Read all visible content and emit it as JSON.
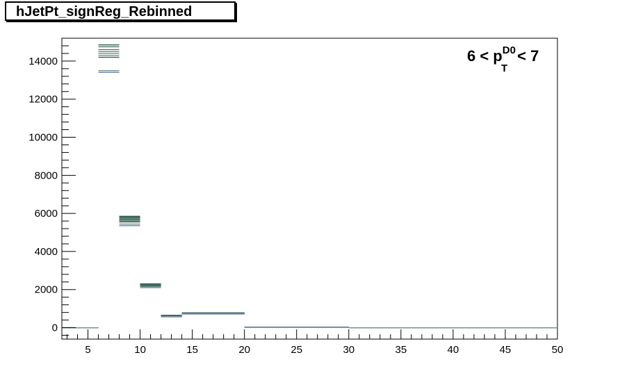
{
  "title": "hJetPt_signReg_Rebinned",
  "annotation": {
    "prefix": "6 < p",
    "superscript": "D0",
    "subscript": "T",
    "suffix": "< 7"
  },
  "chart_data": {
    "type": "histogram",
    "title": "hJetPt_signReg_Rebinned",
    "xlabel": "",
    "ylabel": "",
    "xlim": [
      2.5,
      50
    ],
    "ylim": [
      -600,
      15200
    ],
    "x_ticks": [
      5,
      10,
      15,
      20,
      25,
      30,
      35,
      40,
      45,
      50
    ],
    "y_ticks": [
      0,
      2000,
      4000,
      6000,
      8000,
      10000,
      12000,
      14000
    ],
    "bin_edges": [
      2.5,
      6,
      8,
      10,
      12,
      14,
      20,
      30,
      50
    ],
    "series": [
      {
        "color": "#1f4a3f",
        "values": [
          0,
          14850,
          5850,
          2300,
          650,
          780,
          30,
          0
        ]
      },
      {
        "color": "#2e5a4e",
        "values": [
          0,
          14750,
          5800,
          2280,
          640,
          770,
          28,
          0
        ]
      },
      {
        "color": "#3a6a5c",
        "values": [
          0,
          14600,
          5750,
          2260,
          630,
          760,
          26,
          0
        ]
      },
      {
        "color": "#456f63",
        "values": [
          0,
          14500,
          5700,
          2240,
          620,
          755,
          25,
          0
        ]
      },
      {
        "color": "#4f7769",
        "values": [
          0,
          14400,
          5650,
          2220,
          610,
          750,
          24,
          0
        ]
      },
      {
        "color": "#5a7f72",
        "values": [
          0,
          14300,
          5600,
          2200,
          600,
          745,
          22,
          0
        ]
      },
      {
        "color": "#33504a",
        "values": [
          0,
          14200,
          5550,
          2180,
          590,
          740,
          20,
          0
        ]
      },
      {
        "color": "#6f8f88",
        "values": [
          0,
          13500,
          5450,
          2150,
          580,
          730,
          18,
          0
        ]
      },
      {
        "color": "#8aa3a0",
        "values": [
          0,
          13420,
          5380,
          2120,
          570,
          720,
          16,
          0
        ]
      },
      {
        "color": "#7b8fbf",
        "values": [
          0,
          13400,
          5350,
          2100,
          560,
          710,
          15,
          0
        ]
      }
    ]
  }
}
